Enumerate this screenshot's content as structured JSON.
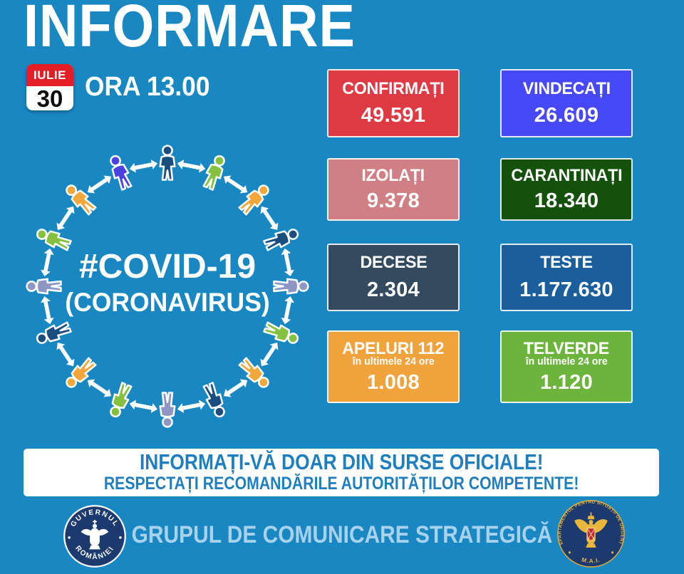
{
  "header": {
    "title": "INFORMARE",
    "calendar_month": "IULIE",
    "calendar_day": "30",
    "time": "ORA 13.00"
  },
  "diagram": {
    "hashtag": "#COVID-19",
    "subtitle": "(CORONAVIRUS)",
    "arrow_color": "#ffffff",
    "person_colors": [
      "#1A4E7E",
      "#85C03E",
      "#F2A73B",
      "#1A4E7E",
      "#8E96C4",
      "#85C03E",
      "#F2A73B",
      "#1A4E7E",
      "#8E96C4",
      "#85C03E",
      "#F2A73B",
      "#1A4E7E",
      "#8E96C4",
      "#85C03E",
      "#F2A73B",
      "#4B42E0"
    ]
  },
  "stats": [
    {
      "id": "confirmati",
      "label": "CONFIRMAȚI",
      "value": "49.591",
      "bg": "#DE3A44"
    },
    {
      "id": "vindecati",
      "label": "VINDECAȚI",
      "value": "26.609",
      "bg": "#4749F8"
    },
    {
      "id": "izolati",
      "label": "IZOLAȚI",
      "value": "9.378",
      "bg": "#D08084"
    },
    {
      "id": "carantinati",
      "label": "CARANTINAȚI",
      "value": "18.340",
      "bg": "#14510A"
    },
    {
      "id": "decese",
      "label": "DECESE",
      "value": "2.304",
      "bg": "#344A5E"
    },
    {
      "id": "teste",
      "label": "TESTE",
      "value": "1.177.630",
      "bg": "#1A5E9C"
    },
    {
      "id": "apeluri-112",
      "label": "APELURI 112",
      "sublabel": "în ultimele 24 ore",
      "value": "1.008",
      "bg": "#F0A33C"
    },
    {
      "id": "telverde",
      "label": "TELVERDE",
      "sublabel": "în ultimele 24 ore",
      "value": "1.120",
      "bg": "#6CB43C"
    }
  ],
  "banner": {
    "line1": "INFORMAȚI-VĂ DOAR DIN SURSE OFICIALE!",
    "line2": "RESPECTAȚI RECOMANDĂRILE AUTORITĂȚILOR COMPETENTE!"
  },
  "footer": {
    "title": "GRUPUL DE COMUNICARE STRATEGICĂ",
    "left_seal_top": "GUVERNUL",
    "left_seal_bottom": "ROMÂNIEI",
    "right_seal_text": "DEPARTAMENTUL PENTRU SITUAȚII DE URGENȚĂ",
    "right_seal_bottom": "M.A.I."
  },
  "colors": {
    "background": "#1987C2",
    "banner_text": "#1F7FBE",
    "footer_text": "#A8D2EC",
    "calendar_red": "#E31E26",
    "seal_navy": "#1C3A6E",
    "seal_gold": "#E9B63E"
  }
}
